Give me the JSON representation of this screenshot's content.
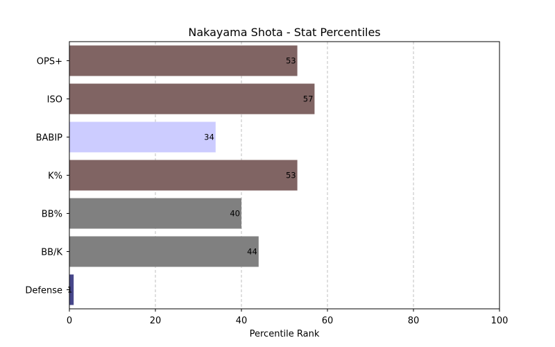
{
  "chart_data": {
    "type": "bar",
    "orientation": "horizontal",
    "title": "Nakayama Shota - Stat Percentiles",
    "xlabel": "Percentile Rank",
    "ylabel": "",
    "xlim": [
      0,
      100
    ],
    "xticks": [
      0,
      20,
      40,
      60,
      80,
      100
    ],
    "grid": "x-dashed",
    "categories": [
      "OPS+",
      "ISO",
      "BABIP",
      "K%",
      "BB%",
      "BB/K",
      "Defense"
    ],
    "values": [
      53,
      57,
      34,
      53,
      40,
      44,
      1
    ],
    "colors": [
      "#806463",
      "#806463",
      "#ccccff",
      "#806463",
      "#808080",
      "#808080",
      "#47478a"
    ]
  }
}
